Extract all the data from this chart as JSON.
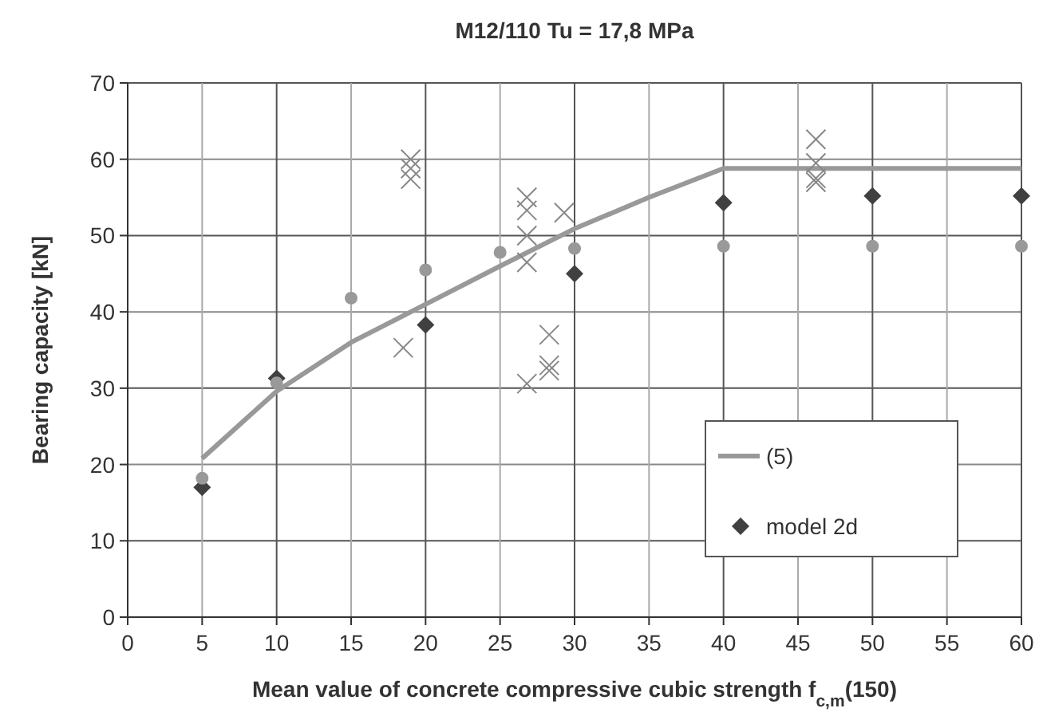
{
  "chart_data": {
    "type": "scatter",
    "title": "M12/110 Tu = 17,8 MPa",
    "xlabel": "Mean value of concrete compressive cubic strength f$_{c,m}$(150)",
    "ylabel": "Bearing capacity [kN]",
    "xlim": [
      0,
      60
    ],
    "xticks": [
      0,
      5,
      10,
      15,
      20,
      25,
      30,
      35,
      40,
      45,
      50,
      55,
      60
    ],
    "ylim": [
      0,
      70
    ],
    "yticks": [
      0,
      10,
      20,
      30,
      40,
      50,
      60,
      70
    ],
    "grid": true,
    "legend": "bottom right",
    "series": [
      {
        "type": "line",
        "name": "(5)",
        "color": "#999999",
        "x": [
          5,
          10,
          15,
          20,
          25,
          30,
          35,
          40,
          60
        ],
        "values": [
          20.8,
          29.6,
          36,
          41,
          46,
          50.9,
          55,
          58.8,
          58.8
        ],
        "marker": "none",
        "line_style": "solid"
      },
      {
        "color": "#888888",
        "marker": "cross",
        "x": [
          18.5,
          19,
          19,
          19,
          26.8,
          26.8,
          26.8,
          26.8,
          26.8,
          28.3,
          28.3,
          28.3,
          29.3,
          46.2,
          46.2,
          46.2,
          46.2
        ],
        "values": [
          35.3,
          60,
          58.8,
          57.4,
          55,
          53.3,
          50,
          46.5,
          30.6,
          37,
          33,
          32.3,
          53,
          62.6,
          59.5,
          57.5,
          57
        ]
      },
      {
        "name": "model 2d",
        "color": "#404040",
        "marker": "diamond",
        "x": [
          5,
          10,
          20,
          30,
          40,
          50,
          60
        ],
        "values": [
          17,
          31.3,
          38.3,
          45,
          54.3,
          55.2,
          55.2
        ]
      },
      {
        "color": "#999999",
        "marker": "circle",
        "x": [
          5,
          10,
          15,
          20,
          25,
          30,
          40,
          50,
          60
        ],
        "values": [
          18.2,
          30.7,
          41.8,
          45.5,
          47.8,
          48.3,
          48.6,
          48.6,
          48.6
        ]
      }
    ]
  }
}
